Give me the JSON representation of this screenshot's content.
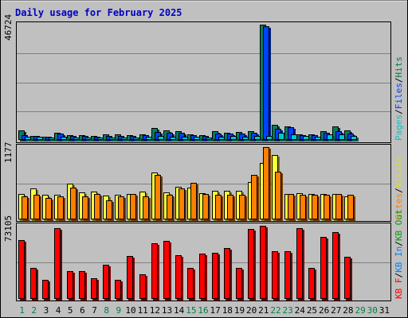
{
  "chart_data": {
    "type": "bar",
    "title": "Daily usage for February 2025",
    "categories": [
      "1",
      "2",
      "3",
      "4",
      "5",
      "6",
      "7",
      "8",
      "9",
      "10",
      "11",
      "12",
      "13",
      "14",
      "15",
      "16",
      "17",
      "18",
      "19",
      "20",
      "21",
      "22",
      "23",
      "24",
      "25",
      "26",
      "27",
      "28",
      "29",
      "30",
      "31"
    ],
    "weekend_days": [
      1,
      2,
      8,
      9,
      15,
      16,
      22,
      23,
      29,
      30
    ],
    "panels": [
      {
        "id": "top",
        "ymax_label": "46724",
        "ymax": 46724,
        "legend": [
          {
            "text": "Pages",
            "color": "#00c8c8"
          },
          {
            "text": "/",
            "color": "#000000"
          },
          {
            "text": "Files",
            "color": "#0040ff"
          },
          {
            "text": "/",
            "color": "#000000"
          },
          {
            "text": "Hits",
            "color": "#008040"
          }
        ],
        "series": [
          {
            "name": "Hits",
            "color": "#008060",
            "values": [
              3900,
              1600,
              1300,
              3000,
              1800,
              1900,
              1600,
              2200,
              2300,
              1900,
              2300,
              4800,
              3900,
              3500,
              2300,
              1900,
              3500,
              2900,
              3100,
              3700,
              46724,
              6000,
              5400,
              2300,
              2300,
              3700,
              5400,
              3900,
              0,
              0,
              0
            ]
          },
          {
            "name": "Files",
            "color": "#0040ff",
            "values": [
              2000,
              1600,
              1300,
              2500,
              1600,
              1600,
              1300,
              1600,
              1600,
              1500,
              1800,
              3300,
              2900,
              3000,
              1800,
              1600,
              2500,
              2500,
              2500,
              2800,
              46000,
              4500,
              5000,
              1900,
              1800,
              2800,
              3700,
              2700,
              0,
              0,
              0
            ]
          },
          {
            "name": "Pages",
            "color": "#00c8c8",
            "values": [
              1400,
              1200,
              1100,
              1300,
              1100,
              1100,
              1100,
              1000,
              1100,
              1000,
              1200,
              1500,
              1400,
              1300,
              1200,
              1000,
              1400,
              1500,
              1400,
              1600,
              1700,
              3000,
              2100,
              1500,
              1300,
              2100,
              2100,
              1500,
              0,
              0,
              0
            ]
          }
        ]
      },
      {
        "id": "middle",
        "ymax_label": "1177",
        "ymax": 1177,
        "legend": [
          {
            "text": "Sites",
            "color": "#ff8000"
          },
          {
            "text": "/",
            "color": "#000000"
          },
          {
            "text": "Visits",
            "color": "#e0e000"
          }
        ],
        "series": [
          {
            "name": "Visits",
            "color": "#ffff40",
            "values": [
              410,
              500,
              400,
              400,
              580,
              440,
              450,
              390,
              400,
              410,
              450,
              760,
              440,
              530,
              520,
              430,
              460,
              460,
              470,
              610,
              920,
              1050,
              410,
              430,
              420,
              420,
              420,
              370,
              0,
              0,
              0
            ]
          },
          {
            "name": "Sites",
            "color": "#ff8000",
            "values": [
              380,
              400,
              350,
              370,
              520,
              380,
              420,
              310,
              380,
              410,
              370,
              720,
              400,
              500,
              590,
              410,
              400,
              400,
              400,
              720,
              1177,
              780,
              410,
              400,
              400,
              400,
              410,
              400,
              0,
              0,
              0
            ]
          }
        ]
      },
      {
        "id": "bottom",
        "ymax_label": "73105",
        "ymax": 73105,
        "legend": [
          {
            "text": "KB F",
            "color": "#ff0000"
          },
          {
            "text": "/",
            "color": "#000000"
          },
          {
            "text": "KB In",
            "color": "#0080ff"
          },
          {
            "text": "/",
            "color": "#000000"
          },
          {
            "text": "KB Out",
            "color": "#00a000"
          }
        ],
        "series": [
          {
            "name": "KB F",
            "color": "#ff0000",
            "values": [
              59000,
              31000,
              19000,
              71000,
              28000,
              28000,
              21000,
              34000,
              19000,
              43000,
              25000,
              56000,
              58000,
              44000,
              31000,
              45000,
              46000,
              51000,
              31000,
              70000,
              73105,
              48000,
              48000,
              71000,
              31000,
              62000,
              67000,
              42000,
              0,
              0,
              0
            ]
          }
        ]
      }
    ]
  }
}
